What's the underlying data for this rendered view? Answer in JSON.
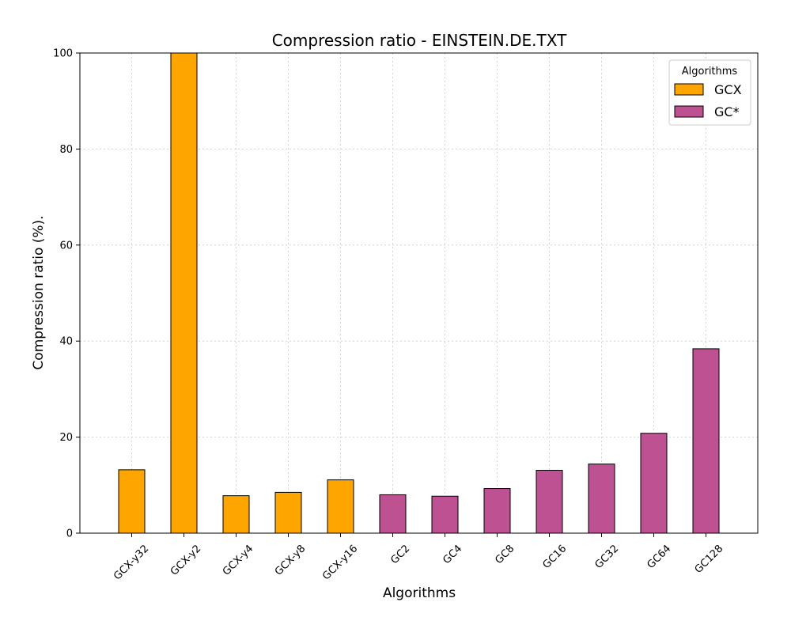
{
  "chart_data": {
    "type": "bar",
    "title": "Compression ratio -  EINSTEIN.DE.TXT",
    "xlabel": "Algorithms",
    "ylabel": "Compression ratio (%).",
    "ylim": [
      0,
      100
    ],
    "yticks": [
      0,
      20,
      40,
      60,
      80,
      100
    ],
    "grid": true,
    "legend_title": "Algorithms",
    "legend_position": "top-right",
    "categories": [
      "GCX-y32",
      "GCX-y2",
      "GCX-y4",
      "GCX-y8",
      "GCX-y16",
      "GC2",
      "GC4",
      "GC8",
      "GC16",
      "GC32",
      "GC64",
      "GC128"
    ],
    "values": [
      13.2,
      100,
      7.8,
      8.5,
      11.1,
      8.0,
      7.7,
      9.3,
      13.1,
      14.4,
      20.8,
      38.4
    ],
    "groups": [
      "GCX",
      "GCX",
      "GCX",
      "GCX",
      "GCX",
      "GC*",
      "GC*",
      "GC*",
      "GC*",
      "GC*",
      "GC*",
      "GC*"
    ],
    "series": [
      {
        "name": "GCX",
        "color": "#FFA500"
      },
      {
        "name": "GC*",
        "color": "#BD5191"
      }
    ]
  }
}
